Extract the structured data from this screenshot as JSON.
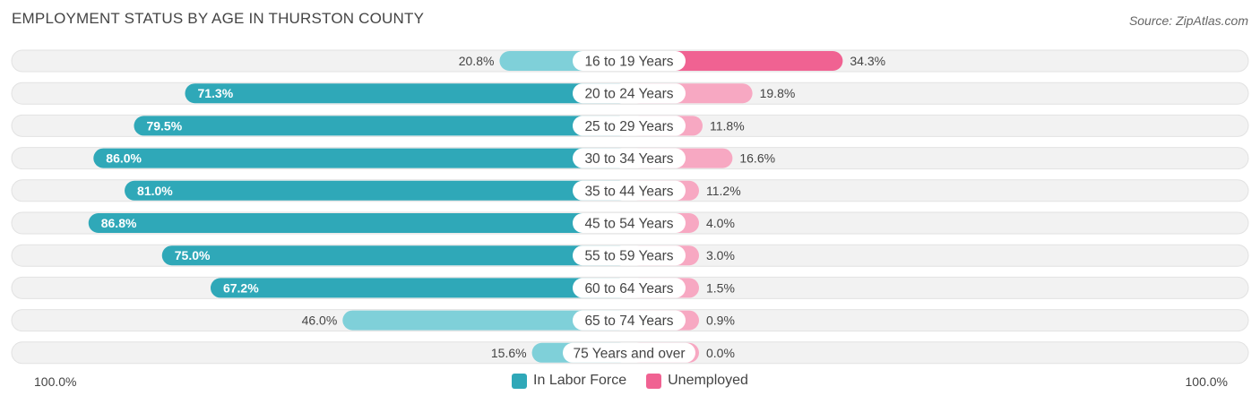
{
  "title": "EMPLOYMENT STATUS BY AGE IN THURSTON COUNTY",
  "source": "Source: ZipAtlas.com",
  "colors": {
    "labor_strong": "#2fa8b8",
    "labor_light": "#7fd0d9",
    "unemp_strong": "#f06292",
    "unemp_light": "#f7a8c2",
    "track": "#f2f2f2"
  },
  "chart_data": {
    "type": "bar",
    "orientation": "horizontal-diverging",
    "title": "EMPLOYMENT STATUS BY AGE IN THURSTON COUNTY",
    "categories": [
      "16 to 19 Years",
      "20 to 24 Years",
      "25 to 29 Years",
      "30 to 34 Years",
      "35 to 44 Years",
      "45 to 54 Years",
      "55 to 59 Years",
      "60 to 64 Years",
      "65 to 74 Years",
      "75 Years and over"
    ],
    "series": [
      {
        "name": "In Labor Force",
        "values": [
          20.8,
          71.3,
          79.5,
          86.0,
          81.0,
          86.8,
          75.0,
          67.2,
          46.0,
          15.6
        ],
        "labels": [
          "20.8%",
          "71.3%",
          "79.5%",
          "86.0%",
          "81.0%",
          "86.8%",
          "75.0%",
          "67.2%",
          "46.0%",
          "15.6%"
        ]
      },
      {
        "name": "Unemployed",
        "values": [
          34.3,
          19.8,
          11.8,
          16.6,
          11.2,
          4.0,
          3.0,
          1.5,
          0.9,
          0.0
        ],
        "labels": [
          "34.3%",
          "19.8%",
          "11.8%",
          "16.6%",
          "11.2%",
          "4.0%",
          "3.0%",
          "1.5%",
          "0.9%",
          "0.0%"
        ]
      }
    ],
    "xlim": [
      -100,
      100
    ],
    "axis_left_label": "100.0%",
    "axis_right_label": "100.0%",
    "legend_position": "bottom-center"
  }
}
